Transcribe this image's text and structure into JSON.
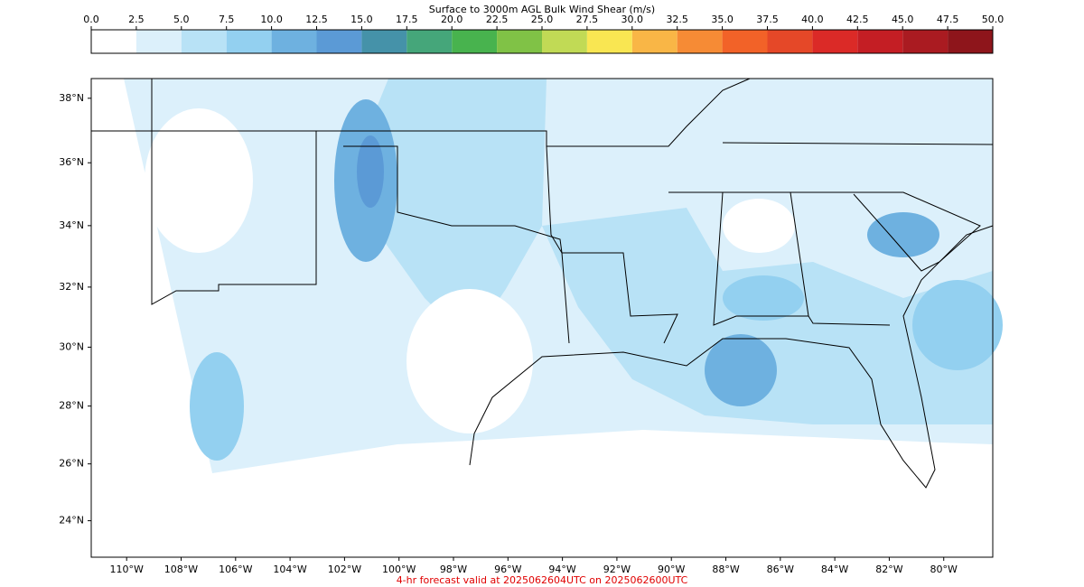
{
  "map": {
    "colorbar": {
      "title": "Surface to 3000m AGL Bulk Wind Shear (m/s)",
      "ticks": [
        {
          "value": 0,
          "label": "0.0"
        },
        2.5,
        {
          "value": 5,
          "label": "5.0"
        },
        7.5,
        {
          "value": 10,
          "label": "10.0"
        },
        12.5,
        {
          "value": 15,
          "label": "15.0"
        },
        17.5,
        {
          "value": 20,
          "label": "20.0"
        },
        22.5,
        {
          "value": 25,
          "label": "25.0"
        },
        27.5,
        {
          "value": 30,
          "label": "30.0"
        },
        32.5,
        {
          "value": 35,
          "label": "35.0"
        },
        37.5,
        {
          "value": 40,
          "label": "40.0"
        },
        42.5,
        {
          "value": 45,
          "label": "45.0"
        },
        47.5,
        {
          "value": 50,
          "label": "50.0"
        }
      ],
      "colors": [
        "#ffffff",
        "#dcf0fb",
        "#b8e2f6",
        "#93d0f0",
        "#6eb1e0",
        "#5b9ad6",
        "#4592a9",
        "#45a67a",
        "#48b34e",
        "#80c246",
        "#c1da55",
        "#f9e652",
        "#f9b646",
        "#f68b35",
        "#f26228",
        "#e54828",
        "#db2a27",
        "#c41e24",
        "#aa1b21",
        "#8e151b"
      ]
    },
    "latlim": [
      22.7,
      38.6
    ],
    "lonlim": [
      -111.3,
      -78.2
    ],
    "lat_labels": [
      {
        "value": 38,
        "label": "38°N"
      },
      {
        "value": 36,
        "label": "36°N"
      },
      {
        "value": 34,
        "label": "34°N"
      },
      {
        "value": 32,
        "label": "32°N"
      },
      {
        "value": 30,
        "label": "30°N"
      },
      {
        "value": 28,
        "label": "28°N"
      },
      {
        "value": 26,
        "label": "26°N"
      },
      {
        "value": 24,
        "label": "24°N"
      }
    ],
    "lon_labels": [
      {
        "value": -110,
        "label": "110°W"
      },
      {
        "value": -108,
        "label": "108°W"
      },
      {
        "value": -106,
        "label": "106°W"
      },
      {
        "value": -104,
        "label": "104°W"
      },
      {
        "value": -102,
        "label": "102°W"
      },
      {
        "value": -100,
        "label": "100°W"
      },
      {
        "value": -98,
        "label": "98°W"
      },
      {
        "value": -96,
        "label": "96°W"
      },
      {
        "value": -94,
        "label": "94°W"
      },
      {
        "value": -92,
        "label": "92°W"
      },
      {
        "value": -90,
        "label": "90°W"
      },
      {
        "value": -88,
        "label": "88°W"
      },
      {
        "value": -86,
        "label": "86°W"
      },
      {
        "value": -84,
        "label": "84°W"
      },
      {
        "value": -82,
        "label": "82°W"
      },
      {
        "value": -80,
        "label": "80°W"
      }
    ],
    "footer": "4-hr forecast valid at 2025062604UTC on 2025062600UTC"
  }
}
